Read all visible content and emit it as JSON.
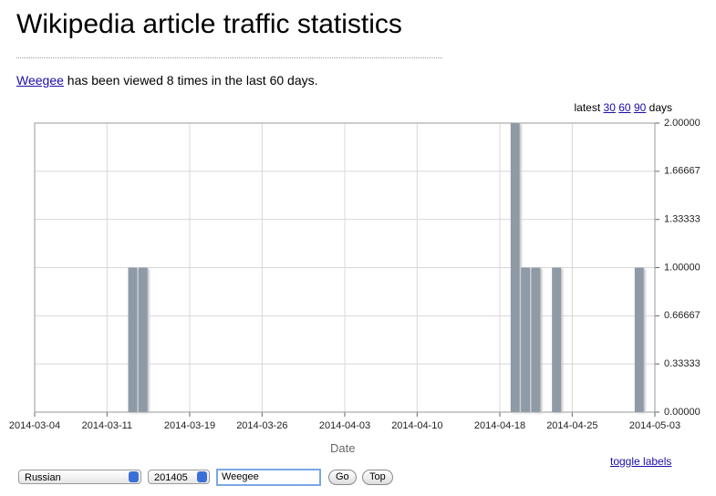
{
  "header": {
    "title": "Wikipedia article traffic statistics"
  },
  "summary": {
    "link": "Weegee",
    "text": "has been viewed 8 times in the last 60 days."
  },
  "range_links": {
    "prefix": "latest",
    "links": [
      "30",
      "60",
      "90"
    ],
    "suffix": "days"
  },
  "chart_data": {
    "type": "bar",
    "x_label": "Date",
    "x": [
      "2014-03-13",
      "2014-03-14",
      "2014-04-19",
      "2014-04-20",
      "2014-04-21",
      "2014-04-23",
      "2014-05-01"
    ],
    "values": [
      1,
      1,
      2,
      1,
      1,
      1,
      1
    ],
    "color": "#8f9aa7",
    "xlim": [
      "2014-03-04",
      "2014-05-03"
    ],
    "xticks": [
      "2014-03-04",
      "2014-03-11",
      "2014-03-19",
      "2014-03-26",
      "2014-04-03",
      "2014-04-10",
      "2014-04-18",
      "2014-04-25",
      "2014-05-03"
    ],
    "ylim": [
      0,
      2
    ],
    "yticks": [
      {
        "value": 0,
        "label": "0.00000"
      },
      0.33333,
      0.66667,
      {
        "value": 1,
        "label": "1.00000"
      },
      1.33333,
      1.66667,
      {
        "value": 2,
        "label": "2.00000"
      }
    ],
    "grid": true
  },
  "toggle": "toggle labels",
  "controls": {
    "language": "Russian",
    "month": "201405",
    "article": "Weegee",
    "buttons": [
      "Go",
      "Top"
    ]
  }
}
